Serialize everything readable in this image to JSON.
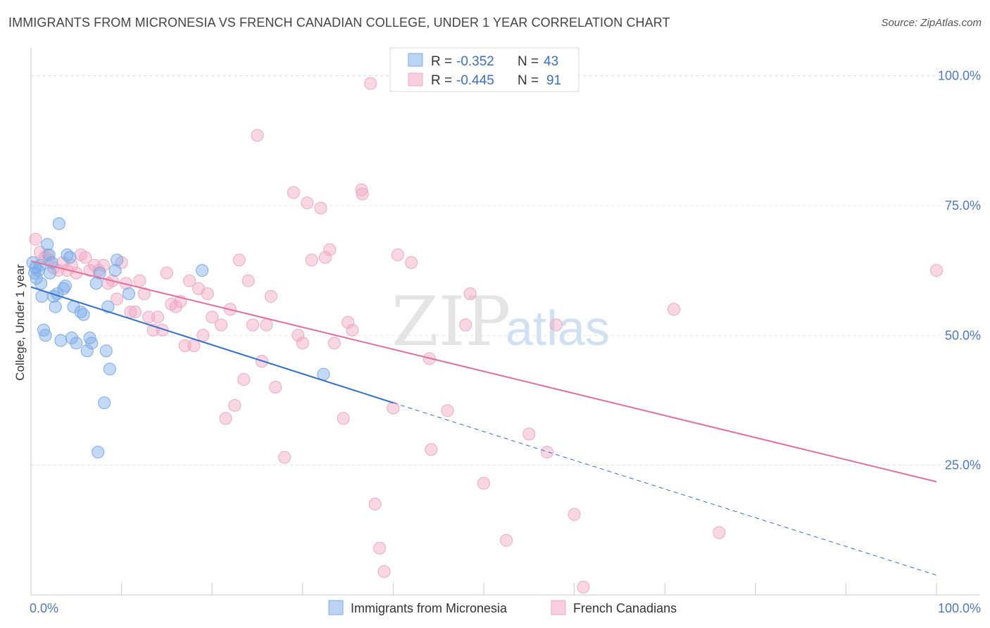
{
  "title": "IMMIGRANTS FROM MICRONESIA VS FRENCH CANADIAN COLLEGE, UNDER 1 YEAR CORRELATION CHART",
  "source": "Source: ZipAtlas.com",
  "watermark": {
    "zip": "ZIP",
    "atlas": "atlas"
  },
  "chart_data": {
    "type": "scatter",
    "title": "IMMIGRANTS FROM MICRONESIA VS FRENCH CANADIAN COLLEGE, UNDER 1 YEAR CORRELATION CHART",
    "xlabel": "",
    "ylabel": "College, Under 1 year",
    "xlim": [
      0,
      100
    ],
    "ylim": [
      0,
      104
    ],
    "x_tick_labels": {
      "left": "0.0%",
      "right": "100.0%"
    },
    "y_ticks": [
      {
        "value": 25,
        "label": "25.0%"
      },
      {
        "value": 50,
        "label": "50.0%"
      },
      {
        "value": 75,
        "label": "75.0%"
      },
      {
        "value": 100,
        "label": "100.0%"
      }
    ],
    "grid": true,
    "legend_top": [
      {
        "series": "Immigrants from Micronesia",
        "r_label": "R =",
        "r_value": "-0.352",
        "n_label": "N =",
        "n_value": "43"
      },
      {
        "series": "French Canadians",
        "r_label": "R =",
        "r_value": "-0.445",
        "n_label": "N =",
        "n_value": "91"
      }
    ],
    "series": [
      {
        "name": "Immigrants from Micronesia",
        "color": "#7aaae8",
        "line_color": "#2f6fd0",
        "trend": {
          "x0": 0,
          "y0": 59.3,
          "x1": 40,
          "y1": 37.0,
          "dash_to_x": 100,
          "dash_to_y": 3.8
        },
        "points": [
          [
            0.2,
            64.0
          ],
          [
            0.4,
            62.0
          ],
          [
            0.5,
            63.0
          ],
          [
            0.6,
            61.0
          ],
          [
            0.8,
            62.5
          ],
          [
            1.0,
            63.5
          ],
          [
            1.2,
            57.5
          ],
          [
            1.4,
            51.0
          ],
          [
            1.6,
            50.0
          ],
          [
            1.8,
            67.5
          ],
          [
            2.0,
            65.5
          ],
          [
            2.3,
            64.0
          ],
          [
            2.5,
            57.5
          ],
          [
            2.7,
            55.5
          ],
          [
            2.9,
            58.0
          ],
          [
            3.1,
            71.5
          ],
          [
            3.3,
            49.0
          ],
          [
            3.6,
            59.0
          ],
          [
            3.8,
            59.5
          ],
          [
            4.0,
            65.5
          ],
          [
            4.3,
            65.0
          ],
          [
            4.5,
            49.5
          ],
          [
            4.7,
            55.5
          ],
          [
            5.0,
            48.5
          ],
          [
            5.5,
            54.5
          ],
          [
            5.8,
            54.0
          ],
          [
            6.2,
            47.0
          ],
          [
            6.5,
            49.5
          ],
          [
            6.7,
            48.5
          ],
          [
            7.2,
            60.0
          ],
          [
            7.4,
            27.5
          ],
          [
            7.6,
            62.0
          ],
          [
            8.1,
            37.0
          ],
          [
            8.3,
            47.0
          ],
          [
            8.5,
            55.5
          ],
          [
            8.7,
            43.5
          ],
          [
            9.3,
            62.5
          ],
          [
            9.5,
            64.5
          ],
          [
            10.8,
            58.0
          ],
          [
            18.9,
            62.5
          ],
          [
            32.3,
            42.5
          ],
          [
            2.1,
            62.0
          ],
          [
            1.1,
            60.0
          ]
        ]
      },
      {
        "name": "French Canadians",
        "color": "#f0a7c2",
        "line_color": "#e46e98",
        "trend": {
          "x0": 0,
          "y0": 64.3,
          "x1": 100,
          "y1": 21.8
        },
        "points": [
          [
            0.5,
            68.5
          ],
          [
            1.0,
            66.0
          ],
          [
            1.5,
            65.0
          ],
          [
            2.0,
            64.5
          ],
          [
            2.5,
            63.0
          ],
          [
            3.0,
            62.5
          ],
          [
            3.5,
            64.0
          ],
          [
            4.0,
            62.5
          ],
          [
            4.5,
            63.5
          ],
          [
            5.0,
            62.0
          ],
          [
            5.5,
            65.5
          ],
          [
            6.0,
            65.0
          ],
          [
            6.5,
            62.5
          ],
          [
            7.0,
            63.5
          ],
          [
            7.5,
            62.5
          ],
          [
            8.0,
            63.5
          ],
          [
            8.5,
            60.0
          ],
          [
            9.0,
            60.5
          ],
          [
            9.5,
            57.0
          ],
          [
            10.0,
            64.0
          ],
          [
            10.5,
            60.0
          ],
          [
            11.0,
            54.5
          ],
          [
            11.5,
            54.5
          ],
          [
            12.0,
            60.5
          ],
          [
            12.5,
            58.0
          ],
          [
            13.0,
            53.5
          ],
          [
            13.5,
            51.0
          ],
          [
            14.0,
            53.5
          ],
          [
            14.5,
            51.0
          ],
          [
            15.0,
            62.0
          ],
          [
            15.5,
            56.0
          ],
          [
            16.0,
            55.5
          ],
          [
            16.5,
            56.5
          ],
          [
            17.0,
            48.0
          ],
          [
            17.5,
            60.5
          ],
          [
            18.0,
            48.0
          ],
          [
            18.5,
            59.0
          ],
          [
            19.0,
            50.0
          ],
          [
            19.5,
            58.0
          ],
          [
            20.0,
            53.5
          ],
          [
            21.0,
            52.0
          ],
          [
            21.5,
            34.0
          ],
          [
            22.0,
            55.0
          ],
          [
            22.5,
            36.5
          ],
          [
            23.0,
            64.5
          ],
          [
            23.5,
            41.5
          ],
          [
            24.0,
            60.5
          ],
          [
            24.5,
            52.0
          ],
          [
            25.0,
            88.5
          ],
          [
            25.5,
            45.0
          ],
          [
            26.0,
            52.0
          ],
          [
            26.5,
            57.5
          ],
          [
            27.0,
            40.0
          ],
          [
            28.0,
            26.5
          ],
          [
            29.0,
            77.5
          ],
          [
            29.5,
            50.0
          ],
          [
            30.0,
            48.5
          ],
          [
            30.5,
            75.5
          ],
          [
            31.0,
            64.5
          ],
          [
            32.0,
            74.5
          ],
          [
            32.5,
            65.0
          ],
          [
            33.0,
            66.5
          ],
          [
            33.5,
            48.5
          ],
          [
            34.5,
            34.0
          ],
          [
            35.0,
            52.5
          ],
          [
            35.5,
            51.0
          ],
          [
            36.5,
            78.0
          ],
          [
            36.6,
            77.2
          ],
          [
            37.5,
            98.5
          ],
          [
            38.0,
            17.5
          ],
          [
            39.0,
            4.5
          ],
          [
            40.0,
            36.0
          ],
          [
            40.5,
            65.5
          ],
          [
            42.0,
            64.0
          ],
          [
            44.0,
            45.5
          ],
          [
            44.2,
            28.0
          ],
          [
            46.0,
            35.5
          ],
          [
            48.0,
            52.0
          ],
          [
            48.5,
            58.0
          ],
          [
            50.0,
            21.5
          ],
          [
            52.5,
            10.5
          ],
          [
            55.0,
            31.0
          ],
          [
            57.0,
            27.5
          ],
          [
            58.0,
            52.0
          ],
          [
            60.0,
            15.5
          ],
          [
            61.0,
            1.5
          ],
          [
            71.0,
            55.0
          ],
          [
            76.0,
            12.0
          ],
          [
            100.0,
            62.5
          ],
          [
            38.5,
            9.0
          ],
          [
            1.8,
            65.5
          ]
        ]
      }
    ]
  },
  "bottom_legend": [
    {
      "label": "Immigrants from Micronesia",
      "color": "#7aaae8"
    },
    {
      "label": "French Canadians",
      "color": "#f0a7c2"
    }
  ]
}
